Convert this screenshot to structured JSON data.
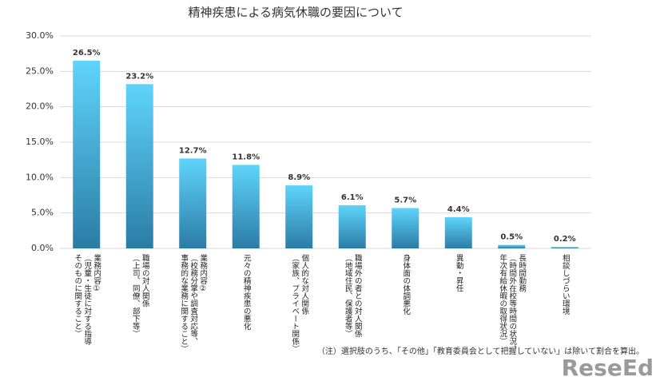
{
  "chart_data": {
    "type": "bar",
    "title": "精神疾患による病気休職の要因について",
    "categories": [
      "業務内容①\n（児童・生徒に対する指導\nそのものに関すること）",
      "職場の対人関係\n（上司、同僚、部下等）",
      "業務内容②\n（校務分掌や調査対応等、\n事務的な業務に関すること）",
      "元々の精神疾患の悪化",
      "個人的な対人関係\n（家族、プライベート関係）",
      "職場外の者との対人関係\n（地域住民、保護者等）",
      "身体面の体調悪化",
      "異動・昇任",
      "長時間勤務\n（時間外在校等時間の状況、\n年次有給休暇の取得状況）",
      "相談しづらい環境"
    ],
    "values": [
      26.5,
      23.2,
      12.7,
      11.8,
      8.9,
      6.1,
      5.7,
      4.4,
      0.5,
      0.2
    ],
    "value_labels": [
      "26.5%",
      "23.2%",
      "12.7%",
      "11.8%",
      "8.9%",
      "6.1%",
      "5.7%",
      "4.4%",
      "0.5%",
      "0.2%"
    ],
    "gradient": [
      "#5fd4fb",
      "#2b7ca5"
    ],
    "ylim": [
      0,
      30
    ],
    "yticks": [
      {
        "value": 0,
        "label": "0.0%"
      },
      {
        "value": 5,
        "label": "5.0%"
      },
      {
        "value": 10,
        "label": "10.0%"
      },
      {
        "value": 15,
        "label": "15.0%"
      },
      {
        "value": 20,
        "label": "20.0%"
      },
      {
        "value": 25,
        "label": "25.0%"
      },
      {
        "value": 30,
        "label": "30.0%"
      }
    ],
    "grid": true,
    "note": "（注）選択肢のうち、「その他」「教育委員会として把握していない」は除いて割合を算出。",
    "logo": "ReseEd"
  }
}
